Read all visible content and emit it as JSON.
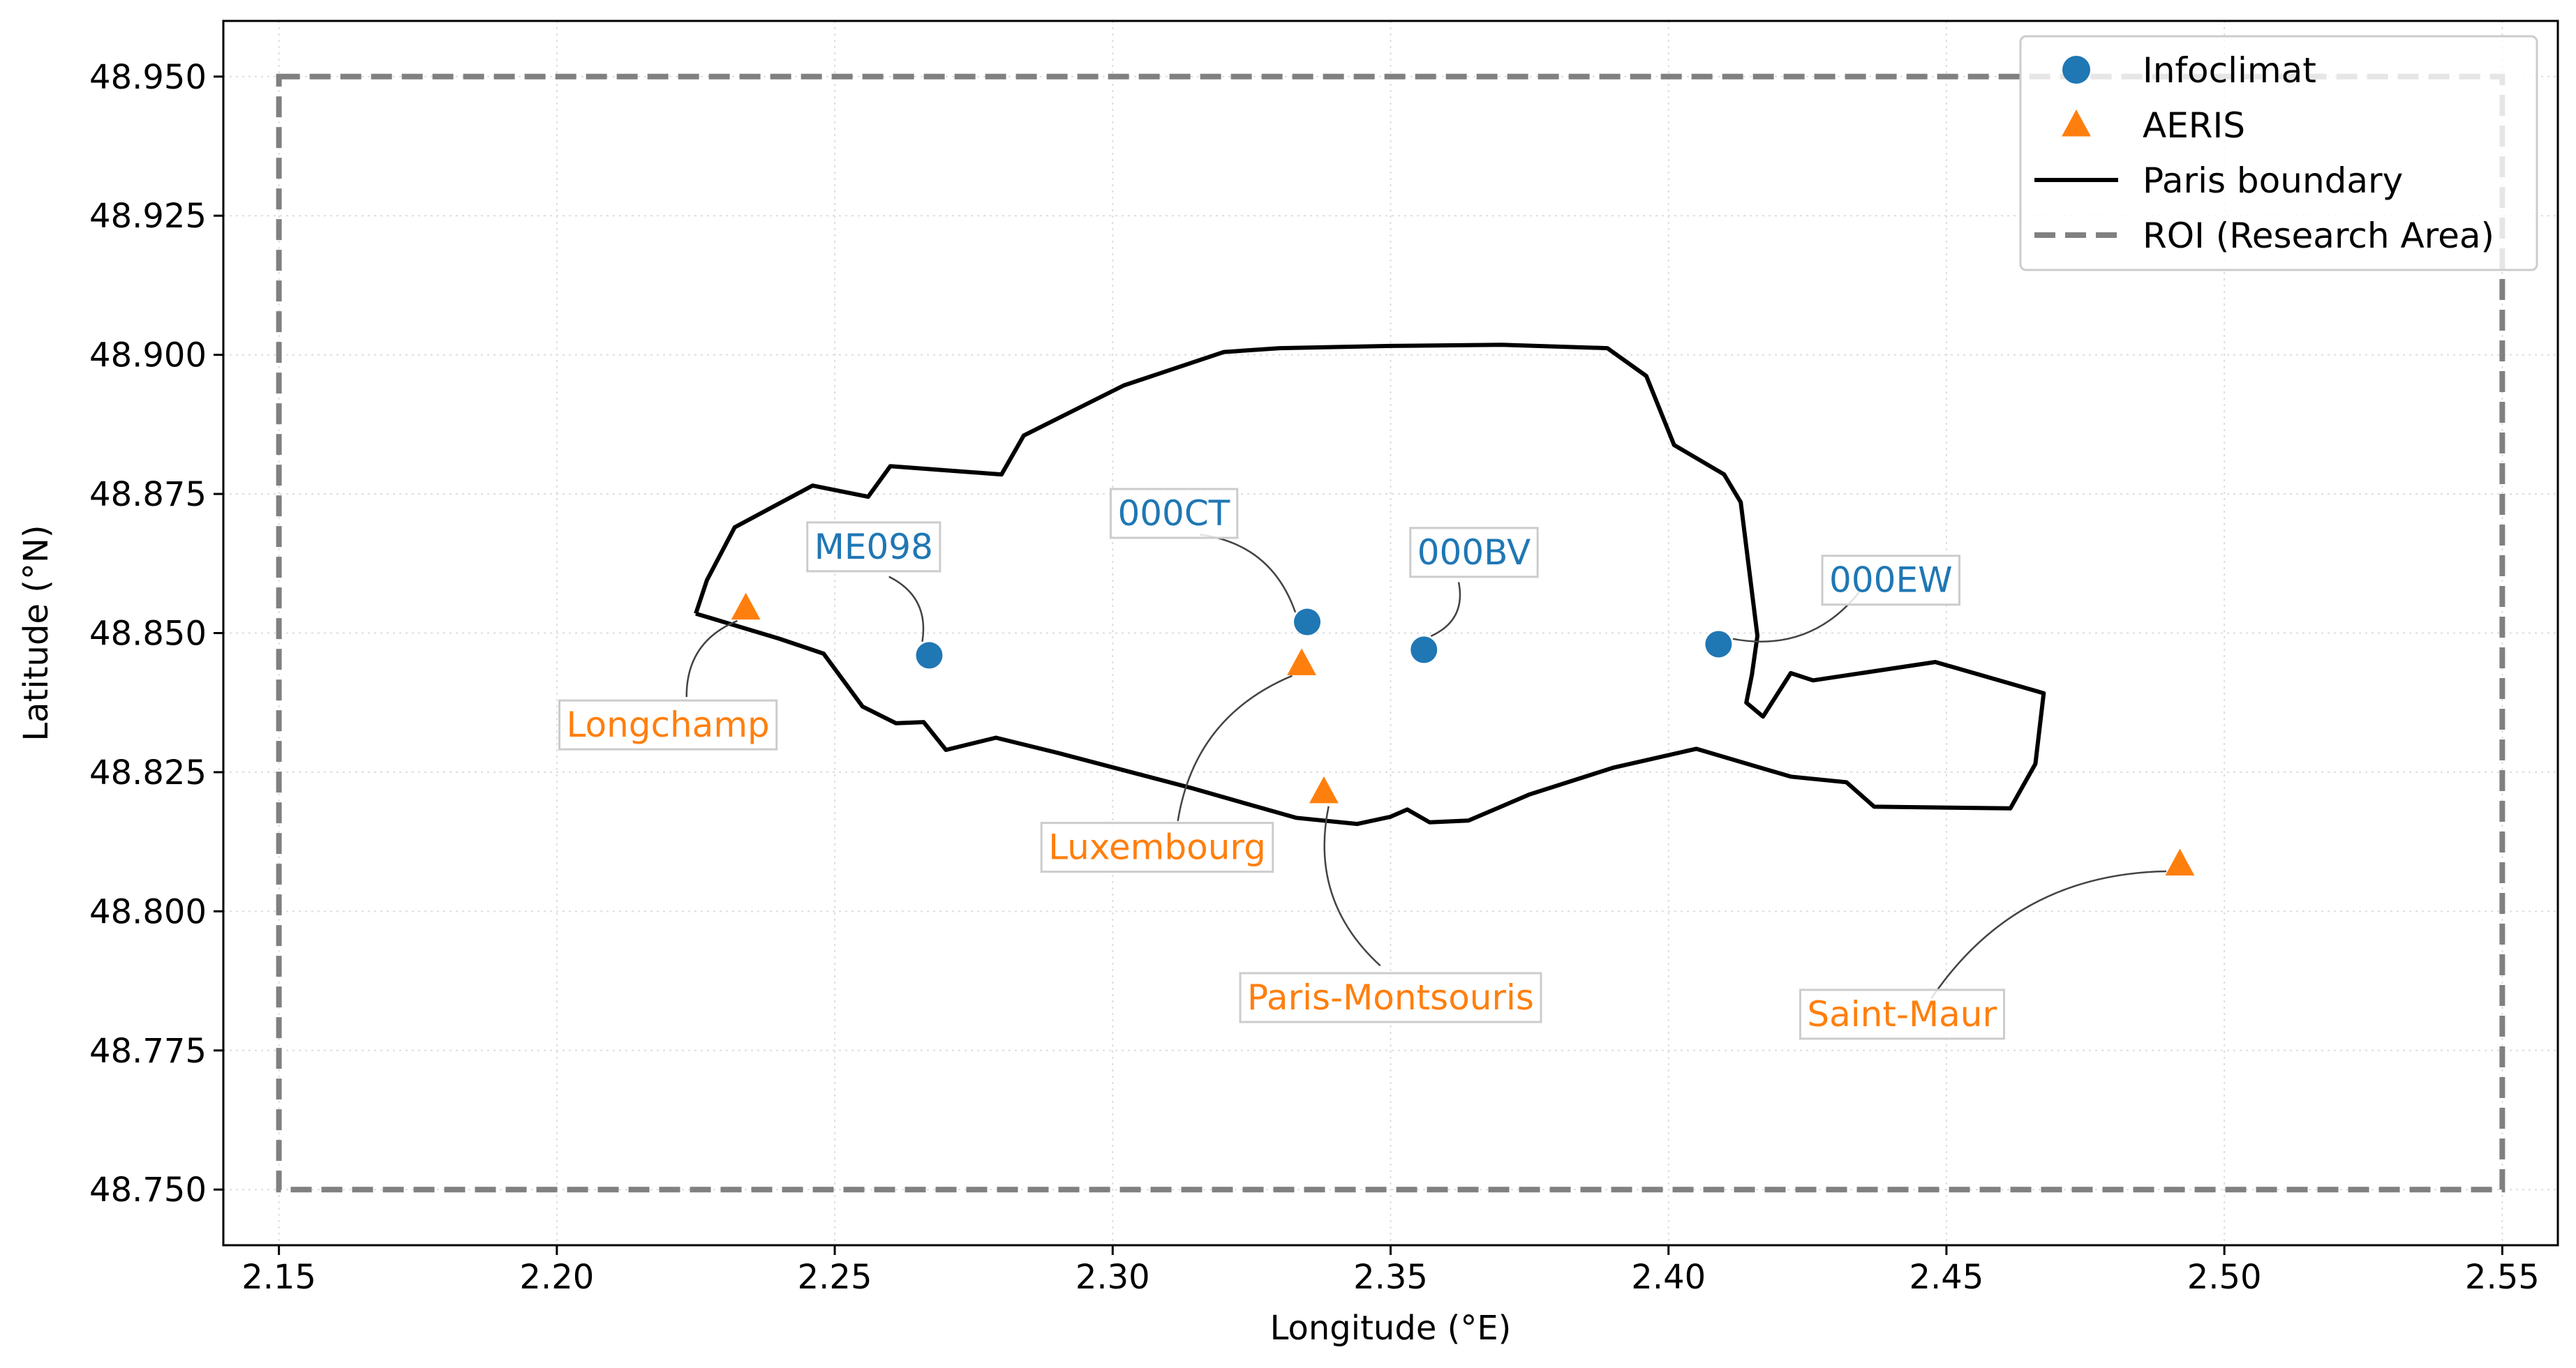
{
  "chart_data": {
    "type": "scatter",
    "xlabel": "Longitude (°E)",
    "ylabel": "Latitude (°N)",
    "xlim": [
      2.14,
      2.56
    ],
    "ylim": [
      48.74,
      48.96
    ],
    "grid": true,
    "legend_position": "top-right",
    "x_ticks": [
      "2.15",
      "2.20",
      "2.25",
      "2.30",
      "2.35",
      "2.40",
      "2.45",
      "2.50",
      "2.55"
    ],
    "y_ticks": [
      "48.750",
      "48.775",
      "48.800",
      "48.825",
      "48.850",
      "48.875",
      "48.900",
      "48.925",
      "48.950"
    ],
    "colors": {
      "infoclimat": "#1f77b4",
      "aeris": "#ff7f0e",
      "boundary": "#000000",
      "roi": "#808080"
    },
    "series": [
      {
        "name": "Infoclimat",
        "marker": "circle",
        "points": [
          {
            "label": "ME098",
            "x": 2.267,
            "y": 48.846,
            "label_x": 2.257,
            "label_y": 48.8655
          },
          {
            "label": "000CT",
            "x": 2.335,
            "y": 48.852,
            "label_x": 2.311,
            "label_y": 48.8715
          },
          {
            "label": "000BV",
            "x": 2.356,
            "y": 48.847,
            "label_x": 2.365,
            "label_y": 48.8645
          },
          {
            "label": "000EW",
            "x": 2.409,
            "y": 48.848,
            "label_x": 2.44,
            "label_y": 48.8595
          }
        ]
      },
      {
        "name": "AERIS",
        "marker": "triangle",
        "points": [
          {
            "label": "Longchamp",
            "x": 2.234,
            "y": 48.8545,
            "label_x": 2.22,
            "label_y": 48.8335
          },
          {
            "label": "Luxembourg",
            "x": 2.334,
            "y": 48.8445,
            "label_x": 2.308,
            "label_y": 48.8115
          },
          {
            "label": "Paris-Montsouris",
            "x": 2.338,
            "y": 48.8215,
            "label_x": 2.35,
            "label_y": 48.7845
          },
          {
            "label": "Saint-Maur",
            "x": 2.492,
            "y": 48.8085,
            "label_x": 2.442,
            "label_y": 48.7815
          }
        ]
      },
      {
        "name": "Paris boundary",
        "line": "solid",
        "path": [
          [
            2.225,
            48.8535
          ],
          [
            2.227,
            48.8595
          ],
          [
            2.232,
            48.869
          ],
          [
            2.246,
            48.8765
          ],
          [
            2.256,
            48.8745
          ],
          [
            2.26,
            48.88
          ],
          [
            2.28,
            48.8785
          ],
          [
            2.284,
            48.8855
          ],
          [
            2.302,
            48.8945
          ],
          [
            2.32,
            48.9005
          ],
          [
            2.33,
            48.9012
          ],
          [
            2.35,
            48.9016
          ],
          [
            2.37,
            48.9018
          ],
          [
            2.389,
            48.9012
          ],
          [
            2.396,
            48.8962
          ],
          [
            2.401,
            48.8838
          ],
          [
            2.41,
            48.8785
          ],
          [
            2.413,
            48.8735
          ],
          [
            2.416,
            48.8495
          ],
          [
            2.415,
            48.8425
          ],
          [
            2.414,
            48.8375
          ],
          [
            2.417,
            48.835
          ],
          [
            2.422,
            48.8428
          ],
          [
            2.426,
            48.8415
          ],
          [
            2.448,
            48.8448
          ],
          [
            2.4675,
            48.8392
          ],
          [
            2.466,
            48.8265
          ],
          [
            2.4615,
            48.8185
          ],
          [
            2.437,
            48.8188
          ],
          [
            2.432,
            48.8232
          ],
          [
            2.422,
            48.8242
          ],
          [
            2.405,
            48.8292
          ],
          [
            2.39,
            48.8258
          ],
          [
            2.375,
            48.821
          ],
          [
            2.364,
            48.8163
          ],
          [
            2.357,
            48.816
          ],
          [
            2.353,
            48.8183
          ],
          [
            2.35,
            48.817
          ],
          [
            2.344,
            48.8157
          ],
          [
            2.333,
            48.8168
          ],
          [
            2.314,
            48.8222
          ],
          [
            2.29,
            48.8285
          ],
          [
            2.279,
            48.8312
          ],
          [
            2.27,
            48.829
          ],
          [
            2.266,
            48.834
          ],
          [
            2.261,
            48.8338
          ],
          [
            2.255,
            48.8368
          ],
          [
            2.248,
            48.8463
          ],
          [
            2.24,
            48.849
          ],
          [
            2.225,
            48.8535
          ]
        ]
      },
      {
        "name": "ROI (Research Area)",
        "line": "dashed",
        "rect": {
          "x0": 2.15,
          "x1": 2.55,
          "y0": 48.75,
          "y1": 48.95
        }
      }
    ]
  }
}
